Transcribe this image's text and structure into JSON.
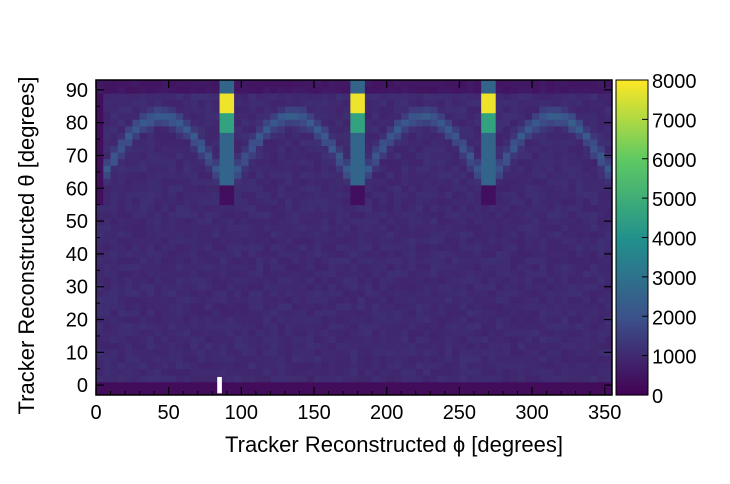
{
  "chart_data": {
    "type": "heatmap",
    "title": "",
    "xlabel": "Tracker Reconstructed ϕ [degrees]",
    "ylabel": "Tracker Reconstructed θ [degrees]",
    "xlim": [
      0,
      355
    ],
    "ylim": [
      -3,
      93
    ],
    "x_ticks": [
      "0",
      "50",
      "100",
      "150",
      "200",
      "250",
      "300",
      "350"
    ],
    "y_ticks": [
      "0",
      "10",
      "20",
      "30",
      "40",
      "50",
      "60",
      "70",
      "80",
      "90"
    ],
    "bin_width_x": 5,
    "bin_width_y": 2,
    "colorscale": "viridis",
    "colorbar": {
      "min": 0,
      "max": 8000,
      "ticks": [
        "0",
        "1000",
        "2000",
        "3000",
        "4000",
        "5000",
        "6000",
        "7000",
        "8000"
      ]
    },
    "description_features": {
      "low_theta_band_counts": 300,
      "bulk_counts": 1000,
      "arc_peak_counts": 2300,
      "hot_phi_columns": [
        90,
        180,
        270
      ],
      "hot_column_peak_counts": 7800,
      "empty_bin": {
        "phi": 85,
        "theta": 0
      }
    }
  },
  "colors": {
    "viridis": [
      "#440154",
      "#3b528b",
      "#21918c",
      "#5ec962",
      "#fde725"
    ]
  }
}
